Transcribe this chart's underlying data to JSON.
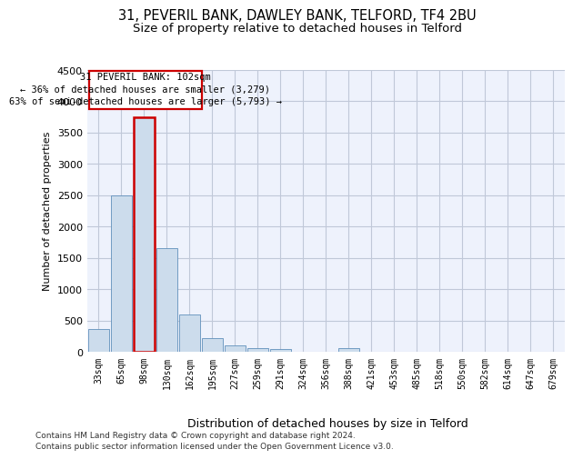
{
  "title1": "31, PEVERIL BANK, DAWLEY BANK, TELFORD, TF4 2BU",
  "title2": "Size of property relative to detached houses in Telford",
  "xlabel": "Distribution of detached houses by size in Telford",
  "ylabel": "Number of detached properties",
  "footer1": "Contains HM Land Registry data © Crown copyright and database right 2024.",
  "footer2": "Contains public sector information licensed under the Open Government Licence v3.0.",
  "annotation_line1": "31 PEVERIL BANK: 102sqm",
  "annotation_line2": "← 36% of detached houses are smaller (3,279)",
  "annotation_line3": "63% of semi-detached houses are larger (5,793) →",
  "bar_labels": [
    "33sqm",
    "65sqm",
    "98sqm",
    "130sqm",
    "162sqm",
    "195sqm",
    "227sqm",
    "259sqm",
    "291sqm",
    "324sqm",
    "356sqm",
    "388sqm",
    "421sqm",
    "453sqm",
    "485sqm",
    "518sqm",
    "550sqm",
    "582sqm",
    "614sqm",
    "647sqm",
    "679sqm"
  ],
  "bar_values": [
    370,
    2500,
    3750,
    1650,
    590,
    225,
    105,
    60,
    40,
    0,
    0,
    55,
    0,
    0,
    0,
    0,
    0,
    0,
    0,
    0,
    0
  ],
  "bar_color": "#ccdcec",
  "bar_edge_color": "#6090bb",
  "highlight_bar_index": 2,
  "highlight_bar_edge_color": "#cc0000",
  "ylim": [
    0,
    4500
  ],
  "yticks": [
    0,
    500,
    1000,
    1500,
    2000,
    2500,
    3000,
    3500,
    4000,
    4500
  ],
  "bg_color": "#eef2fc",
  "grid_color": "#c0c8d8",
  "annotation_box_color": "#cc0000",
  "title1_fontsize": 10.5,
  "title2_fontsize": 9.5,
  "xlabel_fontsize": 9,
  "ylabel_fontsize": 8,
  "footer_fontsize": 6.5,
  "tick_fontsize": 7
}
